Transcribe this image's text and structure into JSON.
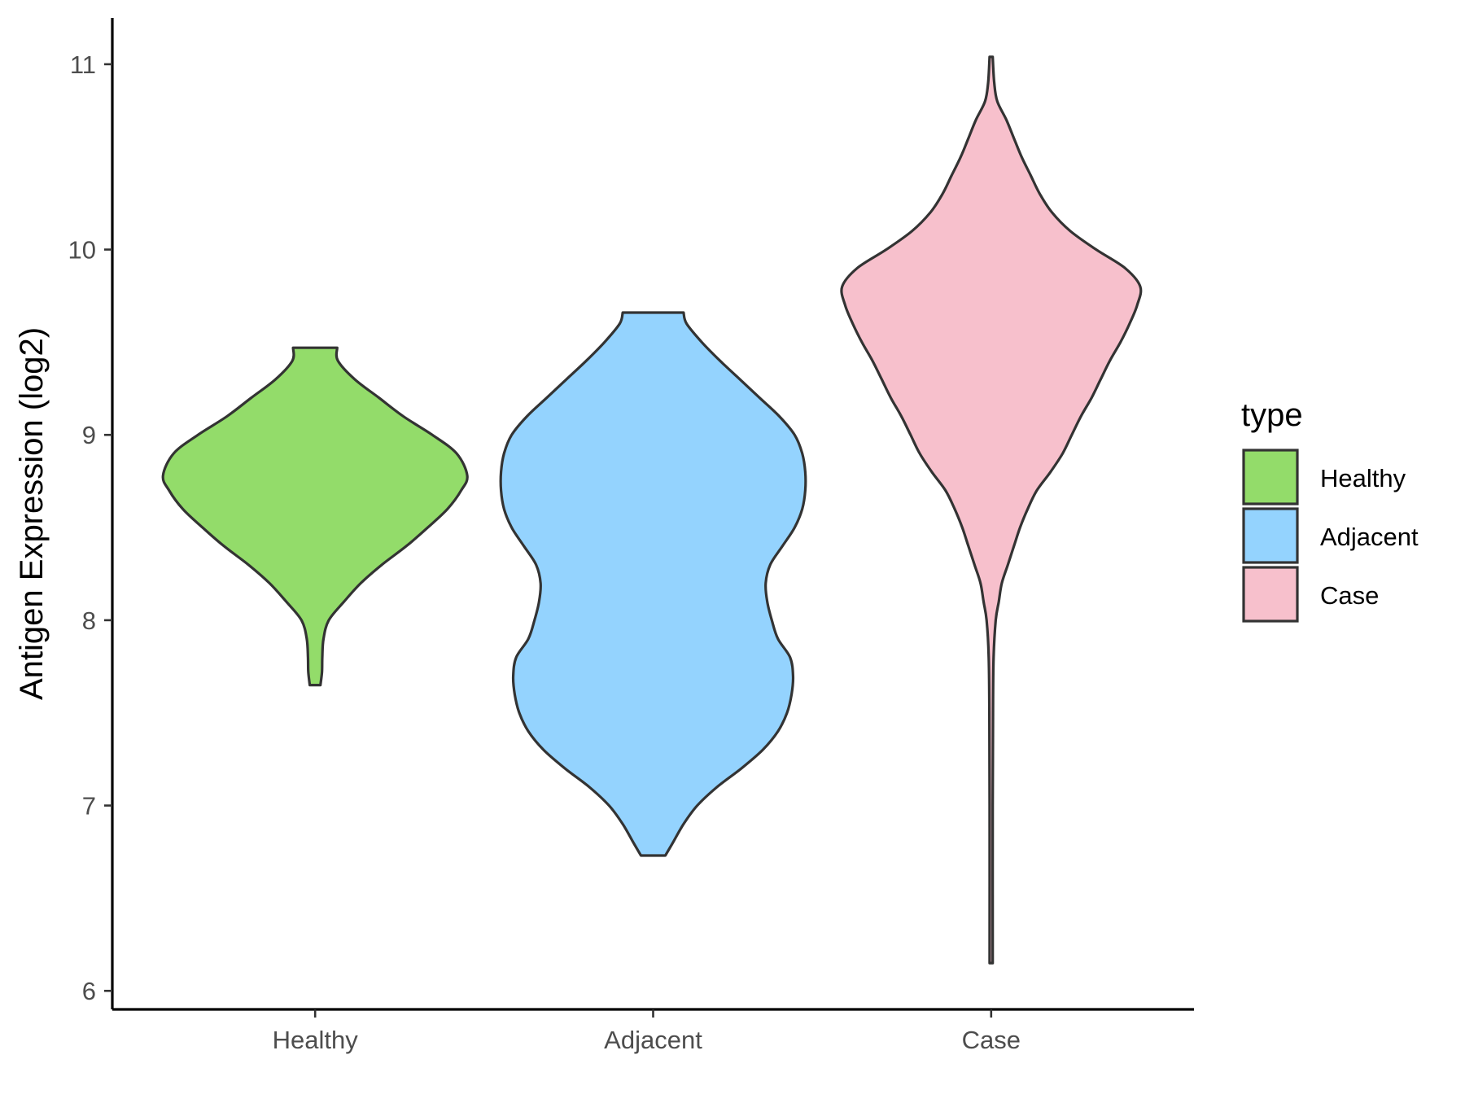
{
  "chart_data": {
    "type": "violin",
    "title": "",
    "xlabel": "",
    "ylabel": "Antigen Expression (log2)",
    "ylim": [
      5.9,
      11.25
    ],
    "yticks": [
      6,
      7,
      8,
      9,
      10,
      11
    ],
    "categories": [
      "Healthy",
      "Adjacent",
      "Case"
    ],
    "grid": false,
    "legend": {
      "title": "type",
      "placement": "right",
      "entries": [
        "Healthy",
        "Adjacent",
        "Case"
      ]
    },
    "series": [
      {
        "name": "Healthy",
        "color": "#93DC6A",
        "min": 7.65,
        "max": 9.47,
        "profile": [
          [
            7.65,
            0.035
          ],
          [
            7.72,
            0.045
          ],
          [
            7.8,
            0.047
          ],
          [
            7.9,
            0.055
          ],
          [
            8.0,
            0.09
          ],
          [
            8.1,
            0.19
          ],
          [
            8.2,
            0.3
          ],
          [
            8.3,
            0.44
          ],
          [
            8.4,
            0.6
          ],
          [
            8.5,
            0.74
          ],
          [
            8.6,
            0.87
          ],
          [
            8.7,
            0.96
          ],
          [
            8.78,
            1.0
          ],
          [
            8.9,
            0.93
          ],
          [
            9.0,
            0.77
          ],
          [
            9.1,
            0.58
          ],
          [
            9.2,
            0.42
          ],
          [
            9.3,
            0.26
          ],
          [
            9.4,
            0.15
          ],
          [
            9.47,
            0.145
          ]
        ]
      },
      {
        "name": "Adjacent",
        "color": "#94D3FE",
        "min": 6.73,
        "max": 9.66,
        "profile": [
          [
            6.73,
            0.08
          ],
          [
            6.8,
            0.13
          ],
          [
            6.9,
            0.2
          ],
          [
            7.0,
            0.29
          ],
          [
            7.1,
            0.42
          ],
          [
            7.2,
            0.58
          ],
          [
            7.3,
            0.72
          ],
          [
            7.4,
            0.82
          ],
          [
            7.5,
            0.88
          ],
          [
            7.6,
            0.91
          ],
          [
            7.7,
            0.92
          ],
          [
            7.8,
            0.9
          ],
          [
            7.9,
            0.82
          ],
          [
            8.0,
            0.78
          ],
          [
            8.1,
            0.75
          ],
          [
            8.2,
            0.74
          ],
          [
            8.3,
            0.77
          ],
          [
            8.4,
            0.85
          ],
          [
            8.5,
            0.93
          ],
          [
            8.6,
            0.98
          ],
          [
            8.7,
            1.0
          ],
          [
            8.8,
            1.0
          ],
          [
            8.9,
            0.98
          ],
          [
            9.0,
            0.93
          ],
          [
            9.1,
            0.83
          ],
          [
            9.2,
            0.7
          ],
          [
            9.3,
            0.57
          ],
          [
            9.4,
            0.44
          ],
          [
            9.5,
            0.32
          ],
          [
            9.6,
            0.22
          ],
          [
            9.66,
            0.2
          ]
        ]
      },
      {
        "name": "Case",
        "color": "#F7C0CC",
        "min": 6.15,
        "max": 11.04,
        "profile": [
          [
            6.15,
            0.01
          ],
          [
            7.0,
            0.01
          ],
          [
            7.5,
            0.012
          ],
          [
            7.8,
            0.016
          ],
          [
            8.0,
            0.03
          ],
          [
            8.1,
            0.05
          ],
          [
            8.2,
            0.07
          ],
          [
            8.3,
            0.11
          ],
          [
            8.4,
            0.15
          ],
          [
            8.5,
            0.19
          ],
          [
            8.6,
            0.24
          ],
          [
            8.7,
            0.3
          ],
          [
            8.8,
            0.39
          ],
          [
            8.9,
            0.47
          ],
          [
            9.0,
            0.53
          ],
          [
            9.1,
            0.59
          ],
          [
            9.2,
            0.66
          ],
          [
            9.3,
            0.72
          ],
          [
            9.4,
            0.78
          ],
          [
            9.5,
            0.85
          ],
          [
            9.6,
            0.91
          ],
          [
            9.7,
            0.96
          ],
          [
            9.8,
            0.98
          ],
          [
            9.9,
            0.88
          ],
          [
            10.0,
            0.69
          ],
          [
            10.1,
            0.52
          ],
          [
            10.2,
            0.4
          ],
          [
            10.3,
            0.32
          ],
          [
            10.4,
            0.26
          ],
          [
            10.5,
            0.2
          ],
          [
            10.6,
            0.15
          ],
          [
            10.7,
            0.1
          ],
          [
            10.8,
            0.04
          ],
          [
            10.9,
            0.02
          ],
          [
            11.04,
            0.01
          ]
        ]
      }
    ]
  }
}
